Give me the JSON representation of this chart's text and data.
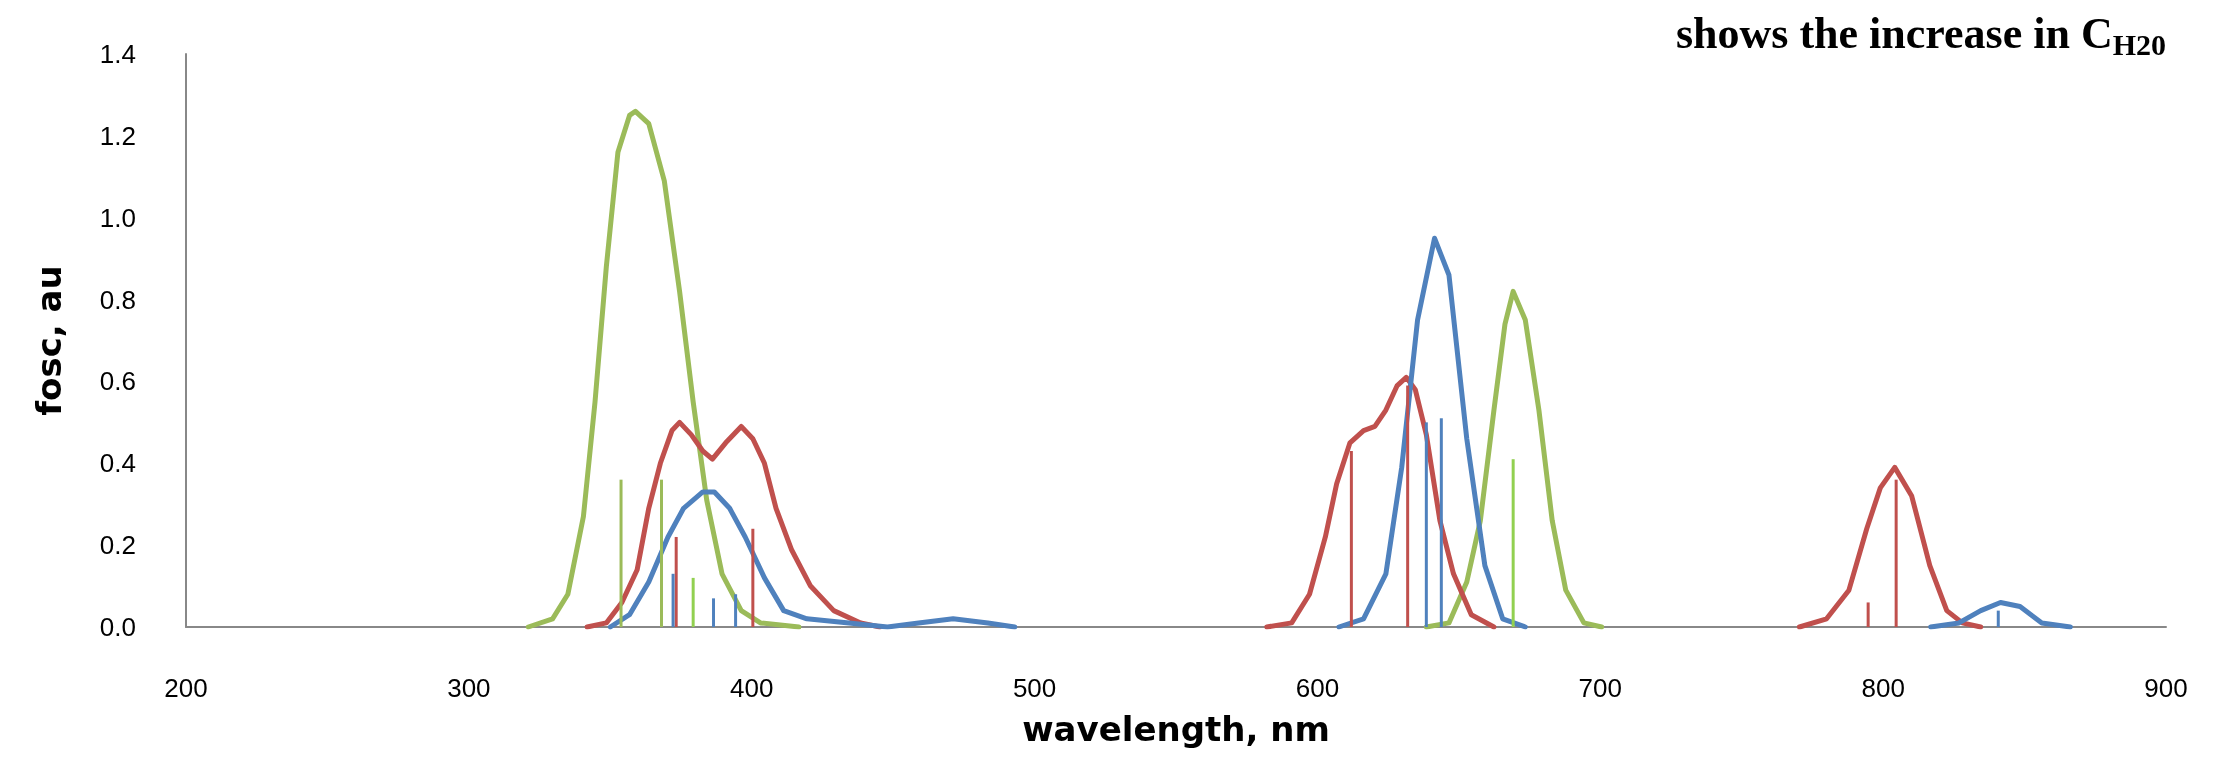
{
  "chart_data": {
    "type": "line",
    "title": "shows the increase in C$_{H20}$",
    "xlabel": "wavelength, nm",
    "ylabel": "fosc, au",
    "xlim": [
      200,
      900
    ],
    "xticks": [
      200,
      300,
      400,
      500,
      600,
      700,
      800,
      900
    ],
    "ylim": [
      0,
      1.4
    ],
    "yticks": [
      {
        "value": 0,
        "label": "0.0"
      },
      {
        "value": 0.2,
        "label": "0.2"
      },
      {
        "value": 0.4,
        "label": "0.4"
      },
      {
        "value": 0.6,
        "label": "0.6"
      },
      {
        "value": 0.8,
        "label": "0.8"
      },
      {
        "value": 1.0,
        "label": "1.0"
      },
      {
        "value": 1.2,
        "label": "1.2"
      },
      {
        "value": 1.4,
        "label": "1.4"
      }
    ],
    "grid": false,
    "marker": "none",
    "line_style": "solid",
    "series": [
      {
        "color": "#9bbb59",
        "x": [
          321,
          329.6,
          335,
          340.5,
          344.6,
          348.6,
          352.7,
          356.8,
          358.9,
          363.6,
          369.1,
          374.5,
          379.3,
          384.1,
          389.5,
          396.3,
          403.1,
          416.7,
          500,
          638.5,
          646.5,
          652.8,
          657.6,
          662.4,
          666.3,
          669.2,
          673.5,
          678.3,
          683,
          687.8,
          694.2,
          700.5
        ],
        "values": [
          0,
          0.02,
          0.08,
          0.27,
          0.55,
          0.88,
          1.16,
          1.25,
          1.26,
          1.23,
          1.09,
          0.82,
          0.55,
          0.31,
          0.13,
          0.04,
          0.01,
          0,
          null,
          0,
          0.01,
          0.11,
          0.26,
          0.53,
          0.74,
          0.82,
          0.75,
          0.53,
          0.26,
          0.09,
          0.01,
          0
        ]
      },
      {
        "color": "#c0504d",
        "x": [
          341.8,
          348.6,
          354.1,
          359.5,
          363.6,
          367.7,
          371.8,
          374.5,
          378.6,
          382.7,
          386.1,
          390.8,
          396.3,
          400.4,
          404.5,
          408.6,
          414,
          420.8,
          429,
          438.5,
          445.3,
          500,
          582.1,
          590.9,
          597.2,
          602.8,
          606.8,
          611.5,
          616.3,
          620.3,
          624.2,
          628.2,
          631.4,
          634.6,
          638.5,
          643.3,
          648.1,
          654.4,
          662.4,
          720,
          770.4,
          780,
          787.9,
          794.2,
          799,
          804.1,
          810.1,
          816.5,
          822.5,
          828,
          834.5
        ],
        "values": [
          0,
          0.01,
          0.06,
          0.14,
          0.29,
          0.4,
          0.48,
          0.5,
          0.47,
          0.43,
          0.41,
          0.45,
          0.49,
          0.46,
          0.4,
          0.29,
          0.19,
          0.1,
          0.04,
          0.01,
          0,
          null,
          0,
          0.01,
          0.08,
          0.22,
          0.35,
          0.45,
          0.48,
          0.49,
          0.53,
          0.59,
          0.61,
          0.58,
          0.47,
          0.26,
          0.13,
          0.03,
          0,
          null,
          0,
          0.02,
          0.09,
          0.24,
          0.34,
          0.39,
          0.32,
          0.15,
          0.04,
          0.01,
          0
        ]
      },
      {
        "color": "#4f81bd",
        "x": [
          350,
          356.8,
          363.6,
          370.4,
          375.9,
          382.7,
          386.8,
          392.2,
          397.7,
          404.5,
          411.3,
          419.5,
          434.4,
          448,
          459,
          471.2,
          483.5,
          493,
          550,
          607.6,
          616.3,
          624.2,
          629.8,
          635.4,
          641.4,
          646.5,
          652.8,
          659.2,
          665.5,
          673.5,
          750,
          816.8,
          826.8,
          834.5,
          841.5,
          848.4,
          856.1,
          866.2
        ],
        "values": [
          0,
          0.03,
          0.11,
          0.22,
          0.29,
          0.33,
          0.33,
          0.29,
          0.22,
          0.12,
          0.04,
          0.02,
          0.01,
          0,
          0.01,
          0.02,
          0.01,
          0,
          null,
          0,
          0.02,
          0.13,
          0.39,
          0.75,
          0.95,
          0.86,
          0.46,
          0.15,
          0.02,
          0,
          null,
          0,
          0.01,
          0.04,
          0.06,
          0.05,
          0.01,
          0
        ]
      },
      {
        "type": "bar",
        "color": "#9bbb59",
        "colors": [
          "#9bbb59",
          "#9bbb59",
          "#92d050",
          "#92d050"
        ],
        "x": [
          353.8,
          368.1,
          379.3,
          669.2
        ],
        "values": [
          0.36,
          0.36,
          0.12,
          0.41
        ]
      },
      {
        "type": "bar",
        "color": "#c0504d",
        "x": [
          373.3,
          400.4,
          612,
          631.9,
          794.7,
          804.6
        ],
        "values": [
          0.22,
          0.24,
          0.43,
          0.59,
          0.06,
          0.36
        ]
      },
      {
        "type": "bar",
        "color": "#4f81bd",
        "x": [
          372.2,
          386.5,
          394.3,
          638.5,
          643.8,
          840.7
        ],
        "values": [
          0.13,
          0.07,
          0.08,
          0.5,
          0.51,
          0.04
        ]
      }
    ]
  }
}
